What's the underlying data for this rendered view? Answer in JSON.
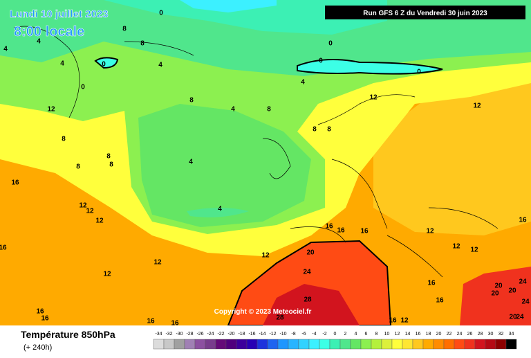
{
  "header": {
    "date": "Lundi 10 juillet 2023",
    "time": "8:00 locale",
    "run": "Run GFS 6 Z du Vendredi 30 juin 2023"
  },
  "copyright": "Copyright © 2023 Meteociel.fr",
  "legend": {
    "title": "Température 850hPa",
    "lead": "(+ 240h)",
    "scale": {
      "ticks": [
        -34,
        -32,
        -30,
        -28,
        -26,
        -24,
        -22,
        -20,
        -18,
        -16,
        -14,
        -12,
        -10,
        -8,
        -6,
        -4,
        -2,
        0,
        2,
        4,
        6,
        8,
        10,
        12,
        14,
        16,
        18,
        20,
        22,
        24,
        26,
        28,
        30,
        32,
        34
      ],
      "colors": [
        "#dcdcdc",
        "#c8c8c8",
        "#a0a0a0",
        "#a080b4",
        "#8c50a0",
        "#783c8c",
        "#640a78",
        "#50007d",
        "#3c009b",
        "#2800b4",
        "#1e32dc",
        "#1e64f0",
        "#1e96ff",
        "#28b4ff",
        "#32d2ff",
        "#3cf0ff",
        "#3cffe6",
        "#3cf0b4",
        "#50e68c",
        "#64e664",
        "#8cf050",
        "#b4f03c",
        "#dcf03c",
        "#ffff3c",
        "#ffe632",
        "#ffc81e",
        "#ffaa00",
        "#ff8c00",
        "#ff6e00",
        "#ff4b14",
        "#f0321e",
        "#d2141e",
        "#b40a14",
        "#8c0000",
        "#000000"
      ]
    }
  },
  "contour_labels": [
    0,
    0,
    0,
    0,
    0,
    0,
    4,
    4,
    4,
    4,
    8,
    8,
    4,
    4,
    8,
    8,
    8,
    8,
    8,
    8,
    8,
    8,
    4,
    4,
    12,
    12,
    12,
    16,
    12,
    12,
    12,
    16,
    12,
    12,
    12,
    16,
    16,
    16,
    20,
    24,
    28,
    28,
    16,
    16,
    16,
    12,
    12,
    12,
    16,
    20,
    20,
    24,
    20,
    24,
    24,
    20,
    16,
    16,
    16,
    16,
    12
  ]
}
